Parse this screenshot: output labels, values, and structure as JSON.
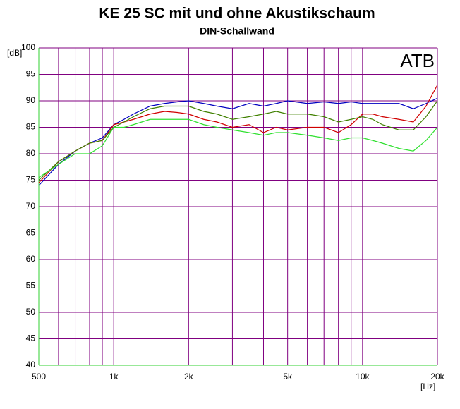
{
  "chart_data": {
    "type": "line",
    "title": "KE 25 SC  mit und ohne Akustikschaum",
    "subtitle": "DIN-Schallwand",
    "annotation": "ATB",
    "y_label": "[dB]",
    "x_label": "[Hz]",
    "x_scale": "log",
    "grid": true,
    "grid_color": "#800080",
    "axis_color": "#30d030",
    "xlim": [
      500,
      20000
    ],
    "xticks": [
      500,
      {
        "value": 1000,
        "label": "1k"
      },
      {
        "value": 2000,
        "label": "2k"
      },
      {
        "value": 5000,
        "label": "5k"
      },
      {
        "value": 10000,
        "label": "10k"
      },
      {
        "value": 20000,
        "label": "20k"
      }
    ],
    "x_minor_ticks": [
      600,
      700,
      800,
      900,
      3000,
      4000,
      6000,
      7000,
      8000,
      9000
    ],
    "ylim": [
      40,
      100
    ],
    "yticks": [
      40,
      45,
      50,
      55,
      60,
      65,
      70,
      75,
      80,
      85,
      90,
      95,
      100
    ],
    "x": [
      500,
      600,
      700,
      800,
      900,
      1000,
      1100,
      1200,
      1400,
      1600,
      1800,
      2000,
      2300,
      2600,
      3000,
      3500,
      4000,
      4500,
      5000,
      6000,
      7000,
      8000,
      9000,
      10000,
      11000,
      12000,
      14000,
      16000,
      18000,
      20000
    ],
    "series": [
      {
        "color": "#0000c0",
        "values": [
          74,
          78,
          80.5,
          82,
          83,
          85.5,
          86.5,
          87.5,
          89,
          89.5,
          89.8,
          90,
          89.5,
          89,
          88.5,
          89.5,
          89,
          89.5,
          90,
          89.5,
          89.8,
          89.5,
          89.8,
          89.5,
          89.5,
          89.5,
          89.5,
          88.5,
          89.5,
          90.5
        ]
      },
      {
        "color": "#d00000",
        "values": [
          74.5,
          78.5,
          80.5,
          82,
          82.5,
          85.5,
          86,
          86.5,
          87.5,
          88,
          87.8,
          87.5,
          86.5,
          86,
          85,
          85.5,
          84,
          85,
          84.5,
          85,
          85,
          84,
          85.5,
          87.5,
          87.5,
          87,
          86.5,
          86,
          89,
          93
        ]
      },
      {
        "color": "#408000",
        "values": [
          75,
          78.5,
          80.5,
          82,
          82.5,
          85,
          86,
          87,
          88.5,
          89,
          89,
          89,
          88,
          87.5,
          86.5,
          87,
          87.5,
          88,
          87.5,
          87.5,
          87,
          86,
          86.5,
          87,
          86.5,
          85.5,
          84.5,
          84.5,
          87,
          90
        ]
      },
      {
        "color": "#30e030",
        "values": [
          75.5,
          78,
          80,
          80,
          81.5,
          85,
          85,
          85.5,
          86.5,
          86.5,
          86.5,
          86.5,
          85.5,
          85,
          84.5,
          84,
          83.5,
          84,
          84,
          83.5,
          83,
          82.5,
          83,
          83,
          82.5,
          82,
          81,
          80.5,
          82.5,
          85
        ]
      }
    ]
  }
}
